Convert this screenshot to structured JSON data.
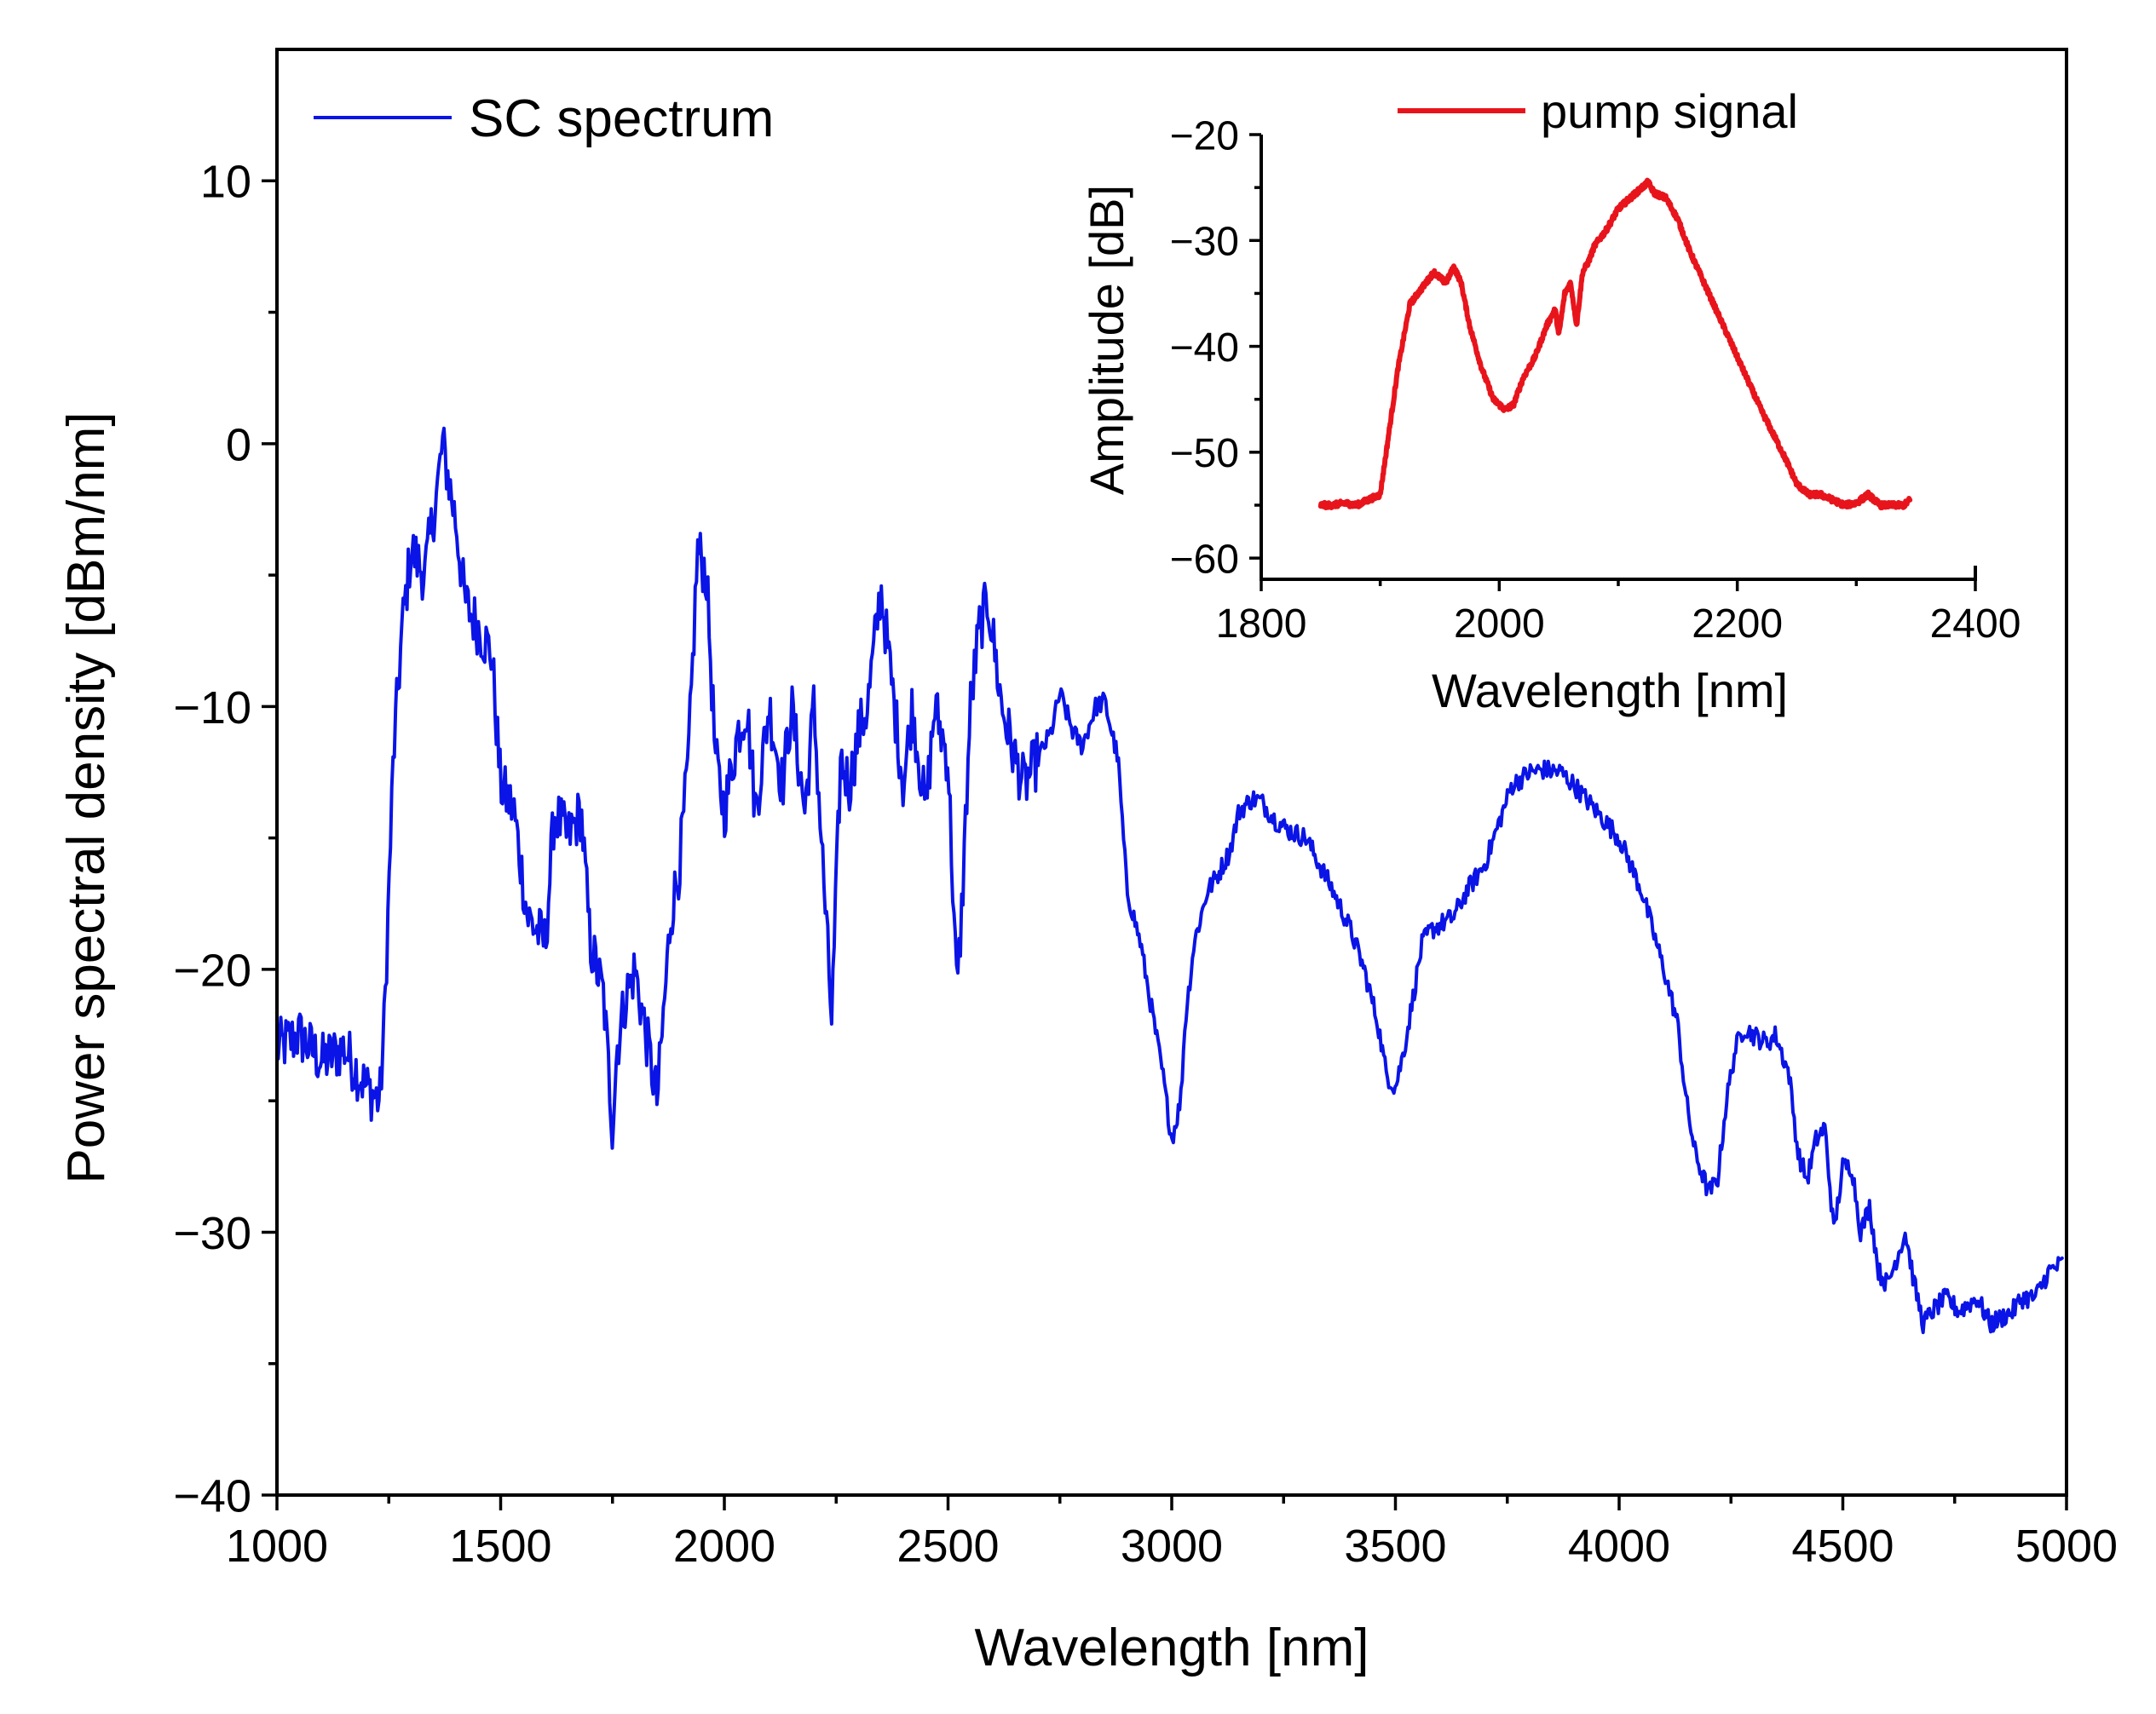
{
  "chart_data": [
    {
      "id": "main",
      "type": "line",
      "title": "",
      "xlabel": "Wavelength [nm]",
      "ylabel": "Power spectral density [dBm/nm]",
      "xlim": [
        1000,
        5000
      ],
      "ylim": [
        -40,
        15
      ],
      "xticks": [
        1000,
        1500,
        2000,
        2500,
        3000,
        3500,
        4000,
        4500,
        5000
      ],
      "yticks": [
        -40,
        -30,
        -20,
        -10,
        0,
        10
      ],
      "xtick_labels": [
        "1000",
        "1500",
        "2000",
        "2500",
        "3000",
        "3500",
        "4000",
        "4500",
        "5000"
      ],
      "ytick_labels": [
        "−40",
        "−30",
        "−20",
        "−10",
        "0",
        "10"
      ],
      "legend_position": "top-left",
      "series": [
        {
          "name": "SC spectrum",
          "color": "#0a14e6",
          "noise": 1.1,
          "x": [
            1000,
            1050,
            1100,
            1150,
            1200,
            1230,
            1240,
            1260,
            1280,
            1300,
            1330,
            1360,
            1370,
            1400,
            1420,
            1450,
            1480,
            1500,
            1530,
            1560,
            1600,
            1620,
            1650,
            1680,
            1700,
            1730,
            1750,
            1760,
            1780,
            1800,
            1830,
            1850,
            1880,
            1900,
            1920,
            1940,
            1960,
            1980,
            2000,
            2030,
            2050,
            2070,
            2100,
            2130,
            2150,
            2180,
            2200,
            2230,
            2240,
            2260,
            2280,
            2300,
            2320,
            2350,
            2380,
            2400,
            2420,
            2450,
            2470,
            2500,
            2520,
            2530,
            2550,
            2570,
            2590,
            2620,
            2650,
            2670,
            2700,
            2730,
            2750,
            2780,
            2800,
            2830,
            2850,
            2880,
            2900,
            2930,
            2950,
            2980,
            3000,
            3020,
            3030,
            3050,
            3080,
            3100,
            3130,
            3150,
            3180,
            3200,
            3230,
            3260,
            3300,
            3330,
            3360,
            3400,
            3430,
            3460,
            3480,
            3500,
            3520,
            3540,
            3560,
            3580,
            3600,
            3630,
            3660,
            3700,
            3730,
            3760,
            3800,
            3830,
            3870,
            3900,
            3950,
            4000,
            4050,
            4100,
            4130,
            4150,
            4170,
            4200,
            4220,
            4240,
            4260,
            4280,
            4300,
            4330,
            4350,
            4380,
            4400,
            4420,
            4440,
            4460,
            4480,
            4500,
            4520,
            4540,
            4560,
            4580,
            4600,
            4620,
            4640,
            4660,
            4680,
            4700,
            4730,
            4760,
            4800,
            4830,
            4850,
            4880,
            4900,
            4930,
            4960,
            4990
          ],
          "y": [
            -23,
            -22.5,
            -23.5,
            -23,
            -24.5,
            -25,
            -22,
            -12,
            -7,
            -4,
            -5,
            -1.5,
            0,
            -3,
            -6,
            -7,
            -8,
            -13,
            -14,
            -18,
            -19,
            -14,
            -15,
            -14,
            -19,
            -21,
            -26,
            -23,
            -21,
            -20,
            -23,
            -25,
            -18,
            -16,
            -12,
            -4,
            -5,
            -12,
            -14,
            -11,
            -10,
            -14,
            -10,
            -13,
            -10,
            -14,
            -10,
            -19,
            -22,
            -12,
            -13,
            -11,
            -10,
            -5.5,
            -10,
            -13,
            -10,
            -14,
            -10,
            -12,
            -21,
            -18,
            -10,
            -7,
            -6,
            -10,
            -12,
            -13,
            -12,
            -11,
            -9.5,
            -11,
            -11.5,
            -10,
            -9.8,
            -12,
            -17,
            -19,
            -21,
            -24,
            -26.5,
            -25,
            -22,
            -19,
            -17,
            -16.5,
            -15.5,
            -14,
            -13.5,
            -13.6,
            -14.3,
            -14.7,
            -15,
            -16,
            -17,
            -18.5,
            -20,
            -22,
            -24,
            -24.5,
            -23,
            -21,
            -19,
            -18.5,
            -18.3,
            -18,
            -17,
            -16,
            -14.5,
            -13,
            -12.5,
            -12.4,
            -12.5,
            -13,
            -14,
            -15,
            -17,
            -20,
            -22,
            -25,
            -27,
            -28.5,
            -28,
            -25,
            -23,
            -22.2,
            -22.5,
            -22.8,
            -22.5,
            -24,
            -27,
            -28,
            -26.5,
            -26,
            -30,
            -27.5,
            -27.5,
            -30,
            -29,
            -31.5,
            -32,
            -31,
            -30,
            -32,
            -33.5,
            -33,
            -32.5,
            -33,
            -32.5,
            -33.5,
            -33.3,
            -33,
            -32.5,
            -32.5,
            -31.5,
            -31.2
          ]
        }
      ]
    },
    {
      "id": "inset",
      "type": "line",
      "title": "",
      "xlabel": "Wavelength [nm]",
      "ylabel": "Amplitude [dB]",
      "xlim": [
        1800,
        2400
      ],
      "ylim": [
        -62,
        -20
      ],
      "xticks": [
        1800,
        2000,
        2200,
        2400
      ],
      "yticks": [
        -60,
        -50,
        -40,
        -30,
        -20
      ],
      "xtick_labels": [
        "1800",
        "2000",
        "2200",
        "2400"
      ],
      "ytick_labels": [
        "−60",
        "−50",
        "−40",
        "−30",
        "−20"
      ],
      "legend_position": "top-center",
      "series": [
        {
          "name": "pump signal",
          "color": "#e8141c",
          "noise": 0.25,
          "x": [
            1850,
            1860,
            1870,
            1880,
            1890,
            1900,
            1905,
            1915,
            1925,
            1935,
            1945,
            1955,
            1962,
            1968,
            1975,
            1985,
            1995,
            2005,
            2012,
            2020,
            2030,
            2040,
            2047,
            2050,
            2055,
            2060,
            2065,
            2070,
            2075,
            2080,
            2090,
            2100,
            2110,
            2120,
            2125,
            2130,
            2140,
            2150,
            2160,
            2180,
            2200,
            2220,
            2240,
            2250,
            2260,
            2270,
            2280,
            2290,
            2300,
            2310,
            2320,
            2330,
            2340,
            2345
          ],
          "y": [
            -55,
            -55,
            -54.8,
            -55,
            -54.5,
            -54,
            -50,
            -42,
            -36,
            -34.5,
            -33,
            -34,
            -32.5,
            -34,
            -38,
            -42,
            -45,
            -46,
            -45.5,
            -43,
            -41,
            -38,
            -36.5,
            -39,
            -35,
            -34,
            -38,
            -33,
            -32,
            -30.5,
            -29,
            -27,
            -26,
            -25,
            -24.5,
            -25.5,
            -26,
            -28,
            -31,
            -36,
            -41,
            -46,
            -50.5,
            -53,
            -54,
            -54,
            -54.5,
            -55,
            -54.8,
            -54,
            -55,
            -55,
            -55,
            -54.5
          ]
        }
      ]
    }
  ]
}
